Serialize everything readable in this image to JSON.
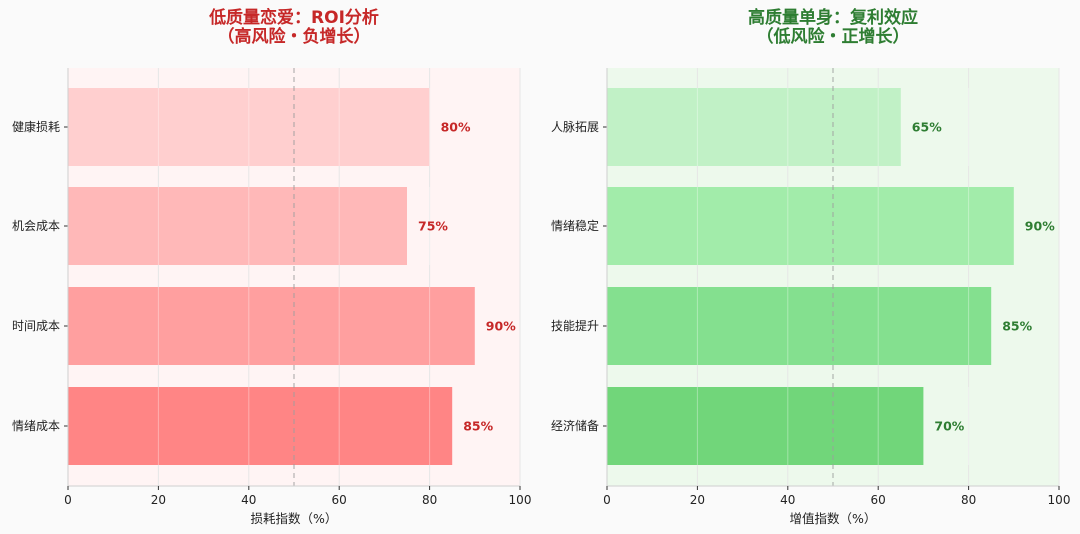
{
  "colors": {
    "background": "#fafafa",
    "left_title": "#c62828",
    "right_title": "#2e7d32",
    "left_panel_bg": "#fff4f4",
    "right_panel_bg": "#edf9ec",
    "left_bars": [
      "#ffcfcf",
      "#ffb8b8",
      "#ff9f9f",
      "#ff8585"
    ],
    "right_bars": [
      "#c1f1c6",
      "#a2ecaa",
      "#84e08f",
      "#71d67a"
    ],
    "left_value_label": "#c62828",
    "right_value_label": "#2e7d32"
  },
  "chart_data": [
    {
      "type": "bar",
      "orientation": "horizontal",
      "title_line1": "低质量恋爱：ROI分析",
      "title_line2": "（高风险・负增长）",
      "xlabel": "损耗指数（%）",
      "ylabel": "",
      "xlim": [
        0,
        100
      ],
      "xticks": [
        "0",
        "20",
        "40",
        "60",
        "80",
        "100"
      ],
      "reference_line_x": 50,
      "grid": true,
      "categories": [
        "健康损耗",
        "机会成本",
        "时间成本",
        "情绪成本"
      ],
      "values": [
        80,
        75,
        90,
        85
      ],
      "value_labels": [
        "80%",
        "75%",
        "90%",
        "85%"
      ]
    },
    {
      "type": "bar",
      "orientation": "horizontal",
      "title_line1": "高质量单身：复利效应",
      "title_line2": "（低风险・正增长）",
      "xlabel": "增值指数（%）",
      "ylabel": "",
      "xlim": [
        0,
        100
      ],
      "xticks": [
        "0",
        "20",
        "40",
        "60",
        "80",
        "100"
      ],
      "reference_line_x": 50,
      "grid": true,
      "categories": [
        "人脉拓展",
        "情绪稳定",
        "技能提升",
        "经济储备"
      ],
      "values": [
        65,
        90,
        85,
        70
      ],
      "value_labels": [
        "65%",
        "90%",
        "85%",
        "70%"
      ]
    }
  ]
}
